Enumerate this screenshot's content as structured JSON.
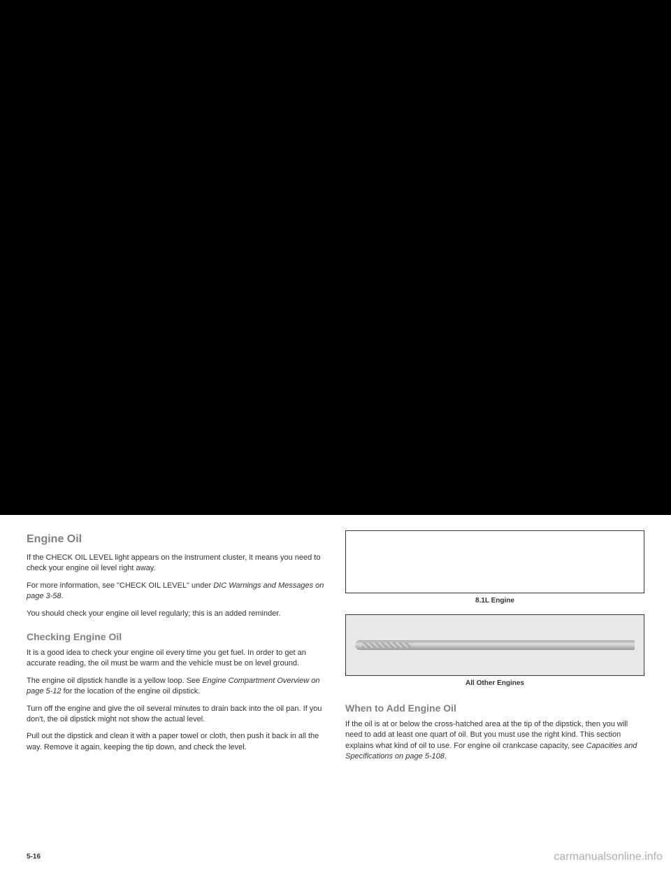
{
  "left": {
    "heading": "Engine Oil",
    "p1": "If the CHECK OIL LEVEL light appears on the instrument cluster, it means you need to check your engine oil level right away.",
    "p2a": "For more information, see \"CHECK OIL LEVEL\" under ",
    "p2b": "DIC Warnings and Messages on page 3-58",
    "p2c": ".",
    "p3": "You should check your engine oil level regularly; this is an added reminder.",
    "subheading": "Checking Engine Oil",
    "p4": "It is a good idea to check your engine oil every time you get fuel. In order to get an accurate reading, the oil must be warm and the vehicle must be on level ground.",
    "p5a": "The engine oil dipstick handle is a yellow loop. See ",
    "p5b": "Engine Compartment Overview on page 5-12",
    "p5c": " for the location of the engine oil dipstick.",
    "p6": "Turn off the engine and give the oil several minutes to drain back into the oil pan. If you don't, the oil dipstick might not show the actual level.",
    "p7": "Pull out the dipstick and clean it with a paper towel or cloth, then push it back in all the way. Remove it again, keeping the tip down, and check the level."
  },
  "right": {
    "caption1": "8.1L Engine",
    "caption2": "All Other Engines",
    "subheading": "When to Add Engine Oil",
    "p1a": "If the oil is at or below the cross-hatched area at the tip of the dipstick, then you will need to add at least one quart of oil. But you must use the right kind. This section explains what kind of oil to use. For engine oil crankcase capacity, see ",
    "p1b": "Capacities and Specifications on page 5-108",
    "p1c": "."
  },
  "footer": "5-16",
  "watermark": "carmanualsonline.info"
}
